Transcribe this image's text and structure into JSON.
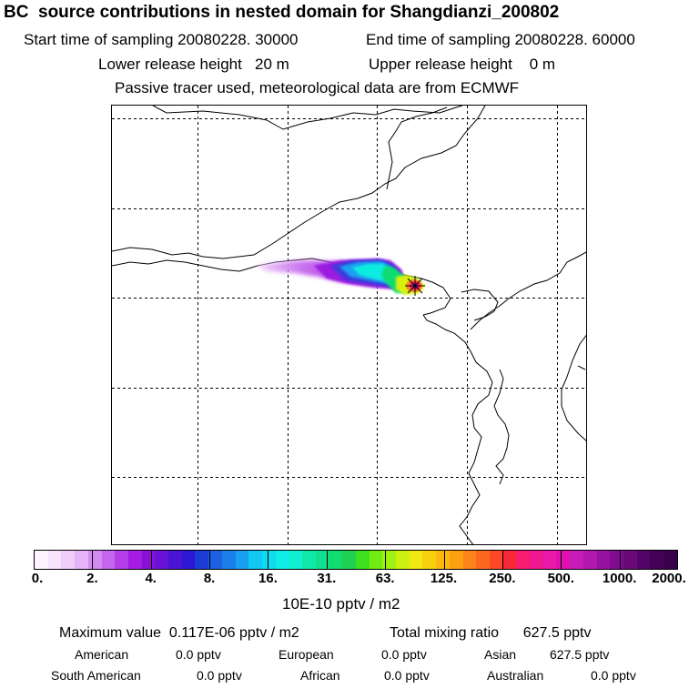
{
  "header": {
    "title": "BC  source contributions in nested domain for Shangdianzi_200802",
    "start_time": "Start time of sampling 20080228. 30000",
    "end_time": "End time of sampling 20080228. 60000",
    "lower_release": "Lower release height   20 m",
    "upper_release": "Upper release height    0 m",
    "tracer_note": "Passive tracer used, meteorological data are from ECMWF"
  },
  "colorbar": {
    "tick_labels": [
      "0.",
      "2.",
      "4.",
      "8.",
      "16.",
      "31.",
      "63.",
      "125.",
      "250.",
      "500.",
      "1000.",
      "2000."
    ],
    "unit_label": "10E-10 pptv / m2",
    "colors": [
      "#fdf3ff",
      "#f8e3fd",
      "#f0cdfa",
      "#e4b4f6",
      "#d48af2",
      "#c665ee",
      "#b43ee9",
      "#a51ce4",
      "#8a10d8",
      "#6a12d6",
      "#4a14d4",
      "#2c18d2",
      "#1c3cd8",
      "#1a60e0",
      "#1a80e8",
      "#1a9ef0",
      "#10c8f2",
      "#10dcf0",
      "#10ece8",
      "#10f0d0",
      "#10e8a8",
      "#10e090",
      "#10dc70",
      "#20d050",
      "#40e020",
      "#70ec10",
      "#a0f010",
      "#ccf010",
      "#f0e810",
      "#f8d010",
      "#fcb810",
      "#fca010",
      "#fc8418",
      "#fc6820",
      "#fc4828",
      "#f82838",
      "#f81c70",
      "#f01890",
      "#e818a8",
      "#e010b0",
      "#c81cb8",
      "#b018b0",
      "#9810a0",
      "#800c90",
      "#6a0878",
      "#540468",
      "#440058",
      "#38004a"
    ]
  },
  "footer": {
    "max_value": "Maximum value  0.117E-06 pptv / m2",
    "total_mixing": "Total mixing ratio      627.5 pptv",
    "american_label": "American",
    "american_value": "0.0 pptv",
    "european_label": "European",
    "european_value": "0.0 pptv",
    "asian_label": "Asian",
    "asian_value": "627.5 pptv",
    "south_american_label": "South American",
    "south_american_value": "0.0 pptv",
    "african_label": "African",
    "african_value": "0.0 pptv",
    "australian_label": "Australian",
    "australian_value": "0.0 pptv"
  }
}
